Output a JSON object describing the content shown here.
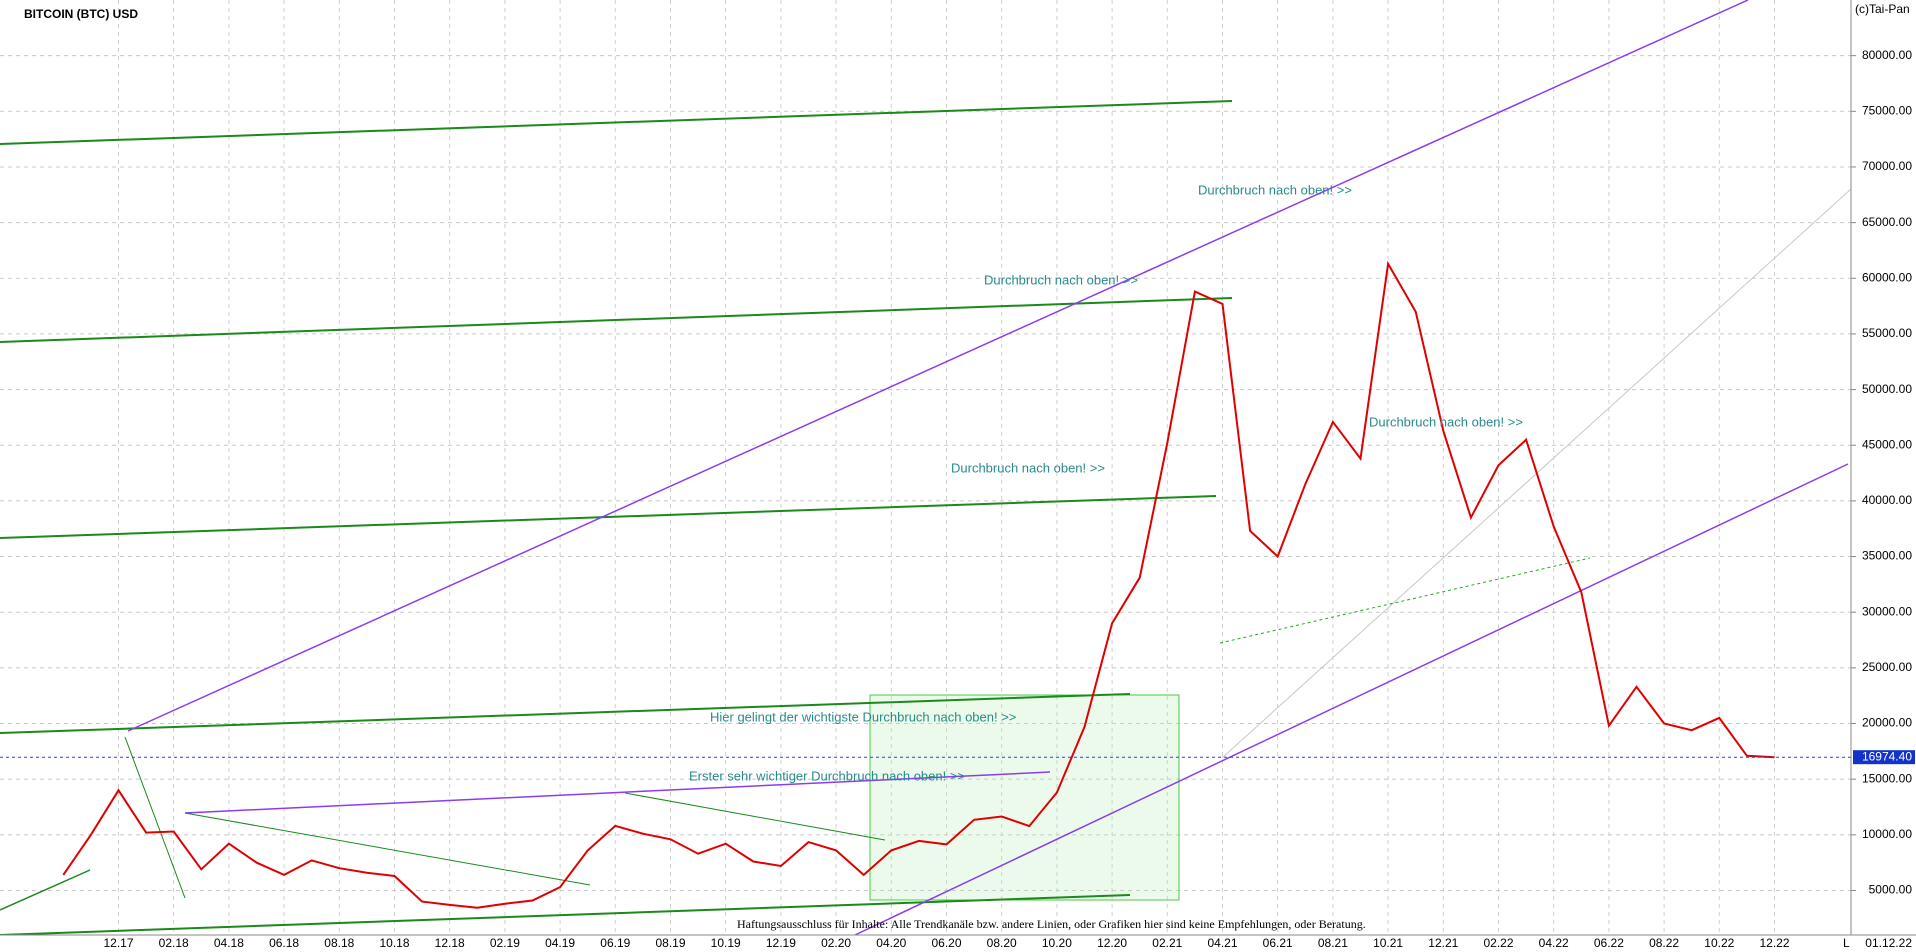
{
  "chart_data": {
    "type": "line",
    "title": "BITCOIN (BTC) USD",
    "source": "(c)Tai-Pan",
    "date": "01.12.22",
    "axis_marker": "L",
    "disclaimer": "Haftungsausschluss für Inhalte: Alle Trendkanäle bzw. andere Linien, oder Grafiken hier sind keine Empfehlungen, oder Beratung.",
    "annotations": [
      "Durchbruch nach oben! >>",
      "Durchbruch nach oben! >>",
      "Durchbruch nach oben! >>",
      "Durchbruch nach oben! >>",
      "Hier gelingt der wichtigste Durchbruch nach oben! >>",
      "Erster sehr wichtiger Durchbruch nach oben! >>"
    ],
    "categories": [
      null,
      null,
      "12.17",
      null,
      "02.18",
      null,
      "04.18",
      null,
      "06.18",
      null,
      "08.18",
      null,
      "10.18",
      null,
      "12.18",
      null,
      "02.19",
      null,
      "04.19",
      null,
      "06.19",
      null,
      "08.19",
      null,
      "10.19",
      null,
      "12.19",
      null,
      "02.20",
      null,
      "04.20",
      null,
      "06.20",
      null,
      "08.20",
      null,
      "10.20",
      null,
      "12.20",
      null,
      "02.21",
      null,
      "04.21",
      null,
      "06.21",
      null,
      "08.21",
      null,
      "10.21",
      null,
      "12.21",
      null,
      "02.22",
      null,
      "04.22",
      null,
      "06.22",
      null,
      "08.22",
      null,
      "10.22",
      null,
      "12.22"
    ],
    "series": [
      {
        "name": "BTC",
        "color": "#e00000",
        "values": [
          6400,
          10000,
          14000,
          10200,
          10300,
          6900,
          9200,
          7500,
          6400,
          7700,
          7000,
          6600,
          6300,
          4000,
          3700,
          3450,
          3800,
          4100,
          5300,
          8600,
          10800,
          10100,
          9600,
          8300,
          9200,
          7600,
          7200,
          9350,
          8600,
          6400,
          8600,
          9450,
          9140,
          11350,
          11650,
          10780,
          13800,
          19700,
          29000,
          33100,
          45200,
          58800,
          57700,
          37300,
          35000,
          41500,
          47100,
          43800,
          61300,
          57000,
          46300,
          38500,
          43200,
          45500,
          37700,
          31800,
          19800,
          23300,
          20000,
          19400,
          20500,
          17100,
          16974.4
        ]
      }
    ],
    "last_price": {
      "value": 16974.4,
      "label": "16974.40"
    },
    "ylim": [
      1000,
      85000
    ],
    "yticks": [
      {
        "value": 5000,
        "label": "5000.00"
      },
      {
        "value": 10000,
        "label": "10000.00"
      },
      {
        "value": 15000,
        "label": "15000.00"
      },
      {
        "value": 20000,
        "label": "20000.00"
      },
      {
        "value": 25000,
        "label": "25000.00"
      },
      {
        "value": 30000,
        "label": "30000.00"
      },
      {
        "value": 35000,
        "label": "35000.00"
      },
      {
        "value": 40000,
        "label": "40000.00"
      },
      {
        "value": 45000,
        "label": "45000.00"
      },
      {
        "value": 50000,
        "label": "50000.00"
      },
      {
        "value": 55000,
        "label": "55000.00"
      },
      {
        "value": 60000,
        "label": "60000.00"
      },
      {
        "value": 65000,
        "label": "65000.00"
      },
      {
        "value": 70000,
        "label": "70000.00"
      },
      {
        "value": 75000,
        "label": "75000.00"
      },
      {
        "value": 80000,
        "label": "80000.00"
      }
    ],
    "grid": true
  }
}
